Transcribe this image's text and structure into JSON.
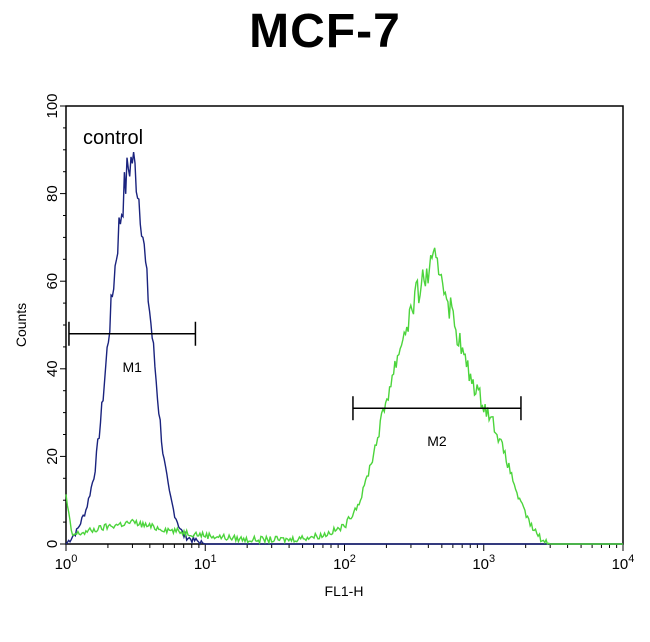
{
  "chart_data": {
    "type": "line",
    "title": "MCF-7",
    "xlabel": "FL1-H",
    "ylabel": "Counts",
    "xscale": "log",
    "xlim": [
      1,
      10000
    ],
    "ylim": [
      0,
      100
    ],
    "yticks": [
      0,
      20,
      40,
      60,
      80,
      100
    ],
    "xticks": [
      {
        "value": 1,
        "base": "10",
        "exp": "0"
      },
      {
        "value": 10,
        "base": "10",
        "exp": "1"
      },
      {
        "value": 100,
        "base": "10",
        "exp": "2"
      },
      {
        "value": 1000,
        "base": "10",
        "exp": "3"
      },
      {
        "value": 10000,
        "base": "10",
        "exp": "4"
      }
    ],
    "annotations": [
      {
        "text": "control"
      }
    ],
    "gates": [
      {
        "label": "M1",
        "x_start": 1.05,
        "x_end": 8.5,
        "y": 48
      },
      {
        "label": "M2",
        "x_start": 115,
        "x_end": 1850,
        "y": 31
      }
    ],
    "series": [
      {
        "color": "#1a237e",
        "x": [
          1.0,
          1.2,
          1.4,
          1.6,
          1.8,
          2.0,
          2.2,
          2.4,
          2.6,
          2.8,
          3.0,
          3.2,
          3.5,
          3.8,
          4.2,
          4.6,
          5.0,
          5.5,
          6.0,
          6.5,
          7.0,
          8.0,
          9.0,
          10,
          20,
          100,
          1000,
          10000
        ],
        "y": [
          0,
          3,
          8,
          16,
          30,
          46,
          60,
          72,
          80,
          86,
          88,
          84,
          74,
          60,
          46,
          32,
          20,
          12,
          7,
          4,
          2,
          1,
          0.5,
          0,
          0,
          0,
          0,
          0
        ]
      },
      {
        "color": "#4cd43c",
        "x": [
          1.0,
          1.1,
          1.5,
          2.0,
          3.0,
          4.0,
          6.0,
          10,
          20,
          40,
          70,
          100,
          130,
          160,
          200,
          250,
          300,
          350,
          400,
          450,
          500,
          550,
          600,
          700,
          800,
          1000,
          1200,
          1500,
          1800,
          2200,
          2600,
          3000,
          10000
        ],
        "y": [
          11,
          2,
          3,
          4,
          5,
          4,
          3,
          2,
          1,
          1,
          2,
          4,
          10,
          20,
          33,
          45,
          53,
          59,
          62,
          64,
          62,
          56,
          52,
          44,
          38,
          32,
          27,
          18,
          10,
          4,
          1,
          0,
          0
        ]
      }
    ]
  }
}
